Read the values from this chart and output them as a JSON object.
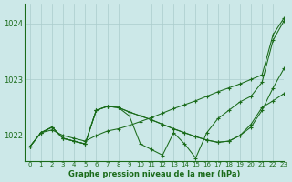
{
  "title": "Graphe pression niveau de la mer (hPa)",
  "bg_color": "#cce8e8",
  "grid_color": "#aacccc",
  "line_color": "#1a6b1a",
  "xlim": [
    -0.5,
    23
  ],
  "ylim": [
    1021.55,
    1024.35
  ],
  "yticks": [
    1022,
    1023,
    1024
  ],
  "xticks": [
    0,
    1,
    2,
    3,
    4,
    5,
    6,
    7,
    8,
    9,
    10,
    11,
    12,
    13,
    14,
    15,
    16,
    17,
    18,
    19,
    20,
    21,
    22,
    23
  ],
  "lines": [
    [
      1021.8,
      1022.05,
      1022.1,
      1022.0,
      1021.95,
      1021.9,
      1022.0,
      1022.08,
      1022.12,
      1022.18,
      1022.25,
      1022.32,
      1022.4,
      1022.48,
      1022.55,
      1022.62,
      1022.7,
      1022.78,
      1022.85,
      1022.92,
      1023.0,
      1023.08,
      1023.8,
      1024.1
    ],
    [
      1021.8,
      1022.05,
      1022.15,
      1021.95,
      1021.9,
      1021.85,
      1022.45,
      1022.52,
      1022.5,
      1022.42,
      1022.35,
      1022.28,
      1022.2,
      1022.12,
      1022.05,
      1021.98,
      1021.92,
      1021.88,
      1021.9,
      1022.0,
      1022.15,
      1022.45,
      1022.85,
      1023.2
    ],
    [
      1021.8,
      1022.05,
      1022.15,
      1021.95,
      1021.9,
      1021.85,
      1022.45,
      1022.52,
      1022.5,
      1022.35,
      1021.85,
      1021.75,
      1021.65,
      1022.05,
      1021.85,
      1021.6,
      1022.05,
      1022.3,
      1022.45,
      1022.6,
      1022.7,
      1022.95,
      1023.7,
      1024.05
    ],
    [
      1021.8,
      1022.05,
      1022.15,
      1021.95,
      1021.9,
      1021.85,
      1022.45,
      1022.52,
      1022.5,
      1022.42,
      1022.35,
      1022.28,
      1022.2,
      1022.12,
      1022.05,
      1021.98,
      1021.92,
      1021.88,
      1021.9,
      1022.0,
      1022.2,
      1022.5,
      1022.62,
      1022.75
    ]
  ]
}
